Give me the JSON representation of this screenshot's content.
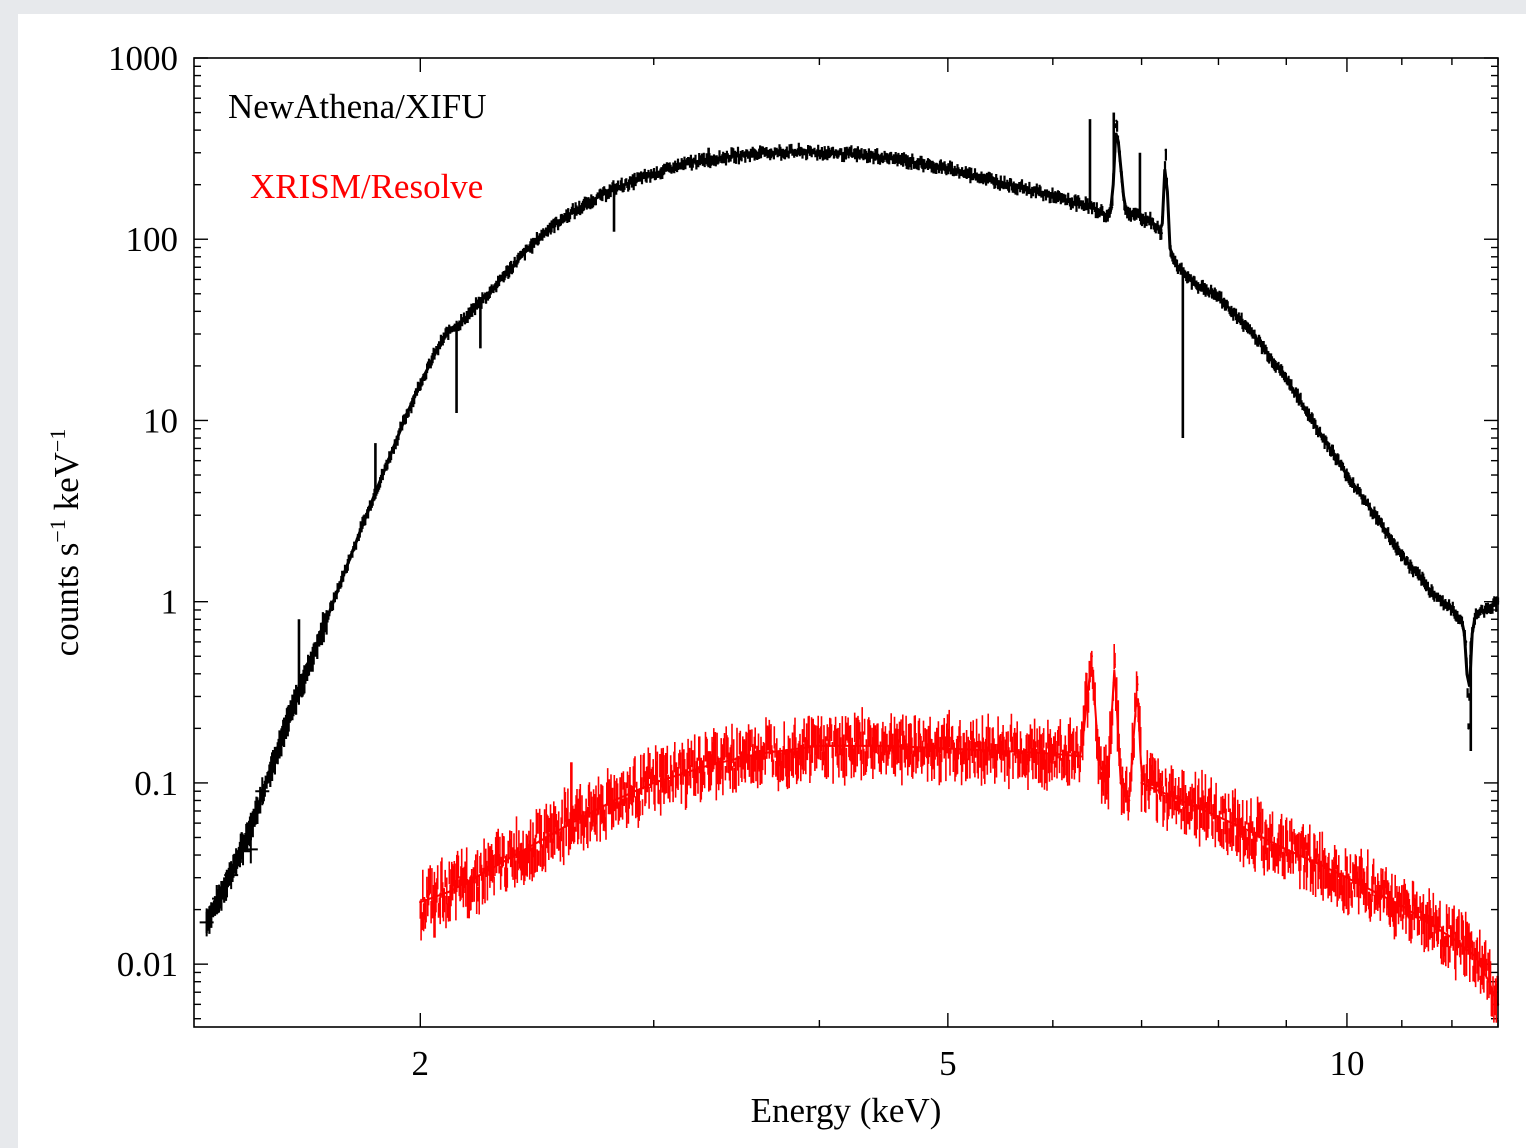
{
  "chart_data": {
    "type": "line",
    "xscale": "log",
    "yscale": "log",
    "xlim": [
      1.35,
      13.0
    ],
    "ylim": [
      0.0045,
      1000
    ],
    "xlabel": "Energy (keV)",
    "ylabel": {
      "main": "counts s",
      "sup1": "−1",
      "mid": " keV",
      "sup2": "−1"
    },
    "xticks_major": [
      {
        "value": 2,
        "label": "2"
      },
      {
        "value": 5,
        "label": "5"
      },
      {
        "value": 10,
        "label": "10"
      }
    ],
    "yticks_major": [
      {
        "value": 1000,
        "label": "1000"
      },
      {
        "value": 100,
        "label": "100"
      },
      {
        "value": 10,
        "label": "10"
      },
      {
        "value": 1,
        "label": "1"
      },
      {
        "value": 0.1,
        "label": "0.1"
      },
      {
        "value": 0.01,
        "label": "0.01"
      }
    ],
    "legend_placement": "top-left",
    "grid": false,
    "series": [
      {
        "name": "NewAthena/XIFU",
        "color": "#000000",
        "style": "error-bars",
        "scatter": 0.04,
        "x": [
          1.38,
          1.41,
          1.44,
          1.47,
          1.5,
          1.53,
          1.56,
          1.6,
          1.65,
          1.7,
          1.75,
          1.8,
          1.85,
          1.9,
          1.95,
          2.0,
          2.05,
          2.08,
          2.1,
          2.12,
          2.15,
          2.2,
          2.25,
          2.3,
          2.4,
          2.5,
          2.6,
          2.7,
          2.8,
          3.0,
          3.2,
          3.4,
          3.6,
          3.8,
          4.0,
          4.3,
          4.6,
          5.0,
          5.4,
          5.8,
          6.0,
          6.2,
          6.3,
          6.4,
          6.5,
          6.55,
          6.6,
          6.65,
          6.7,
          6.8,
          6.95,
          7.0,
          7.1,
          7.25,
          7.3,
          7.35,
          7.45,
          7.6,
          8.0,
          8.5,
          9.0,
          9.5,
          10.0,
          10.5,
          11.0,
          11.5,
          12.0,
          12.2,
          12.3,
          12.35,
          12.4,
          12.5,
          12.7,
          13.0
        ],
        "y": [
          0.017,
          0.023,
          0.032,
          0.045,
          0.065,
          0.1,
          0.15,
          0.25,
          0.45,
          0.8,
          1.4,
          2.4,
          4.0,
          6.5,
          10.5,
          16.0,
          23.0,
          28.0,
          31.0,
          33.0,
          35.0,
          42.0,
          50.0,
          60.0,
          85.0,
          115,
          140,
          165,
          190,
          230,
          265,
          285,
          298,
          303,
          302,
          292,
          275,
          245,
          212,
          185,
          172,
          160,
          158,
          150,
          145,
          138,
          132,
          150,
          450,
          145,
          135,
          130,
          128,
          108,
          310,
          90,
          70,
          60,
          48,
          30,
          17,
          9.0,
          5.0,
          3.0,
          1.8,
          1.2,
          0.9,
          0.8,
          0.6,
          0.2,
          0.6,
          0.85,
          0.9,
          1.0
        ],
        "features": [
          {
            "x": 2.13,
            "y": 11.0
          },
          {
            "x": 2.22,
            "y": 25.0
          },
          {
            "x": 1.85,
            "y": 7.5
          },
          {
            "x": 1.62,
            "y": 0.8
          },
          {
            "x": 2.8,
            "y": 110
          },
          {
            "x": 3.3,
            "y": 320
          },
          {
            "x": 6.4,
            "y": 460
          },
          {
            "x": 6.67,
            "y": 500
          },
          {
            "x": 6.98,
            "y": 300
          },
          {
            "x": 7.52,
            "y": 8.0
          },
          {
            "x": 12.4,
            "y": 0.15
          }
        ]
      },
      {
        "name": "XRISM/Resolve",
        "color": "#ff0000",
        "style": "error-bars",
        "scatter": 0.22,
        "x": [
          2.0,
          2.1,
          2.2,
          2.3,
          2.4,
          2.6,
          2.8,
          3.0,
          3.3,
          3.6,
          4.0,
          4.5,
          5.0,
          5.5,
          6.0,
          6.3,
          6.42,
          6.5,
          6.6,
          6.68,
          6.75,
          6.85,
          6.95,
          7.0,
          7.1,
          7.5,
          8.0,
          8.5,
          9.0,
          9.5,
          10.0,
          10.5,
          11.0,
          11.5,
          12.0,
          12.5,
          12.8,
          13.0
        ],
        "y": [
          0.022,
          0.025,
          0.03,
          0.036,
          0.043,
          0.06,
          0.08,
          0.1,
          0.125,
          0.145,
          0.16,
          0.16,
          0.155,
          0.15,
          0.145,
          0.14,
          0.5,
          0.13,
          0.1,
          0.45,
          0.1,
          0.08,
          0.35,
          0.1,
          0.095,
          0.08,
          0.065,
          0.053,
          0.043,
          0.036,
          0.03,
          0.025,
          0.021,
          0.017,
          0.014,
          0.011,
          0.008,
          0.006
        ],
        "features": [
          {
            "x": 2.6,
            "y": 0.13
          },
          {
            "x": 2.05,
            "y": 0.014
          }
        ]
      }
    ]
  }
}
